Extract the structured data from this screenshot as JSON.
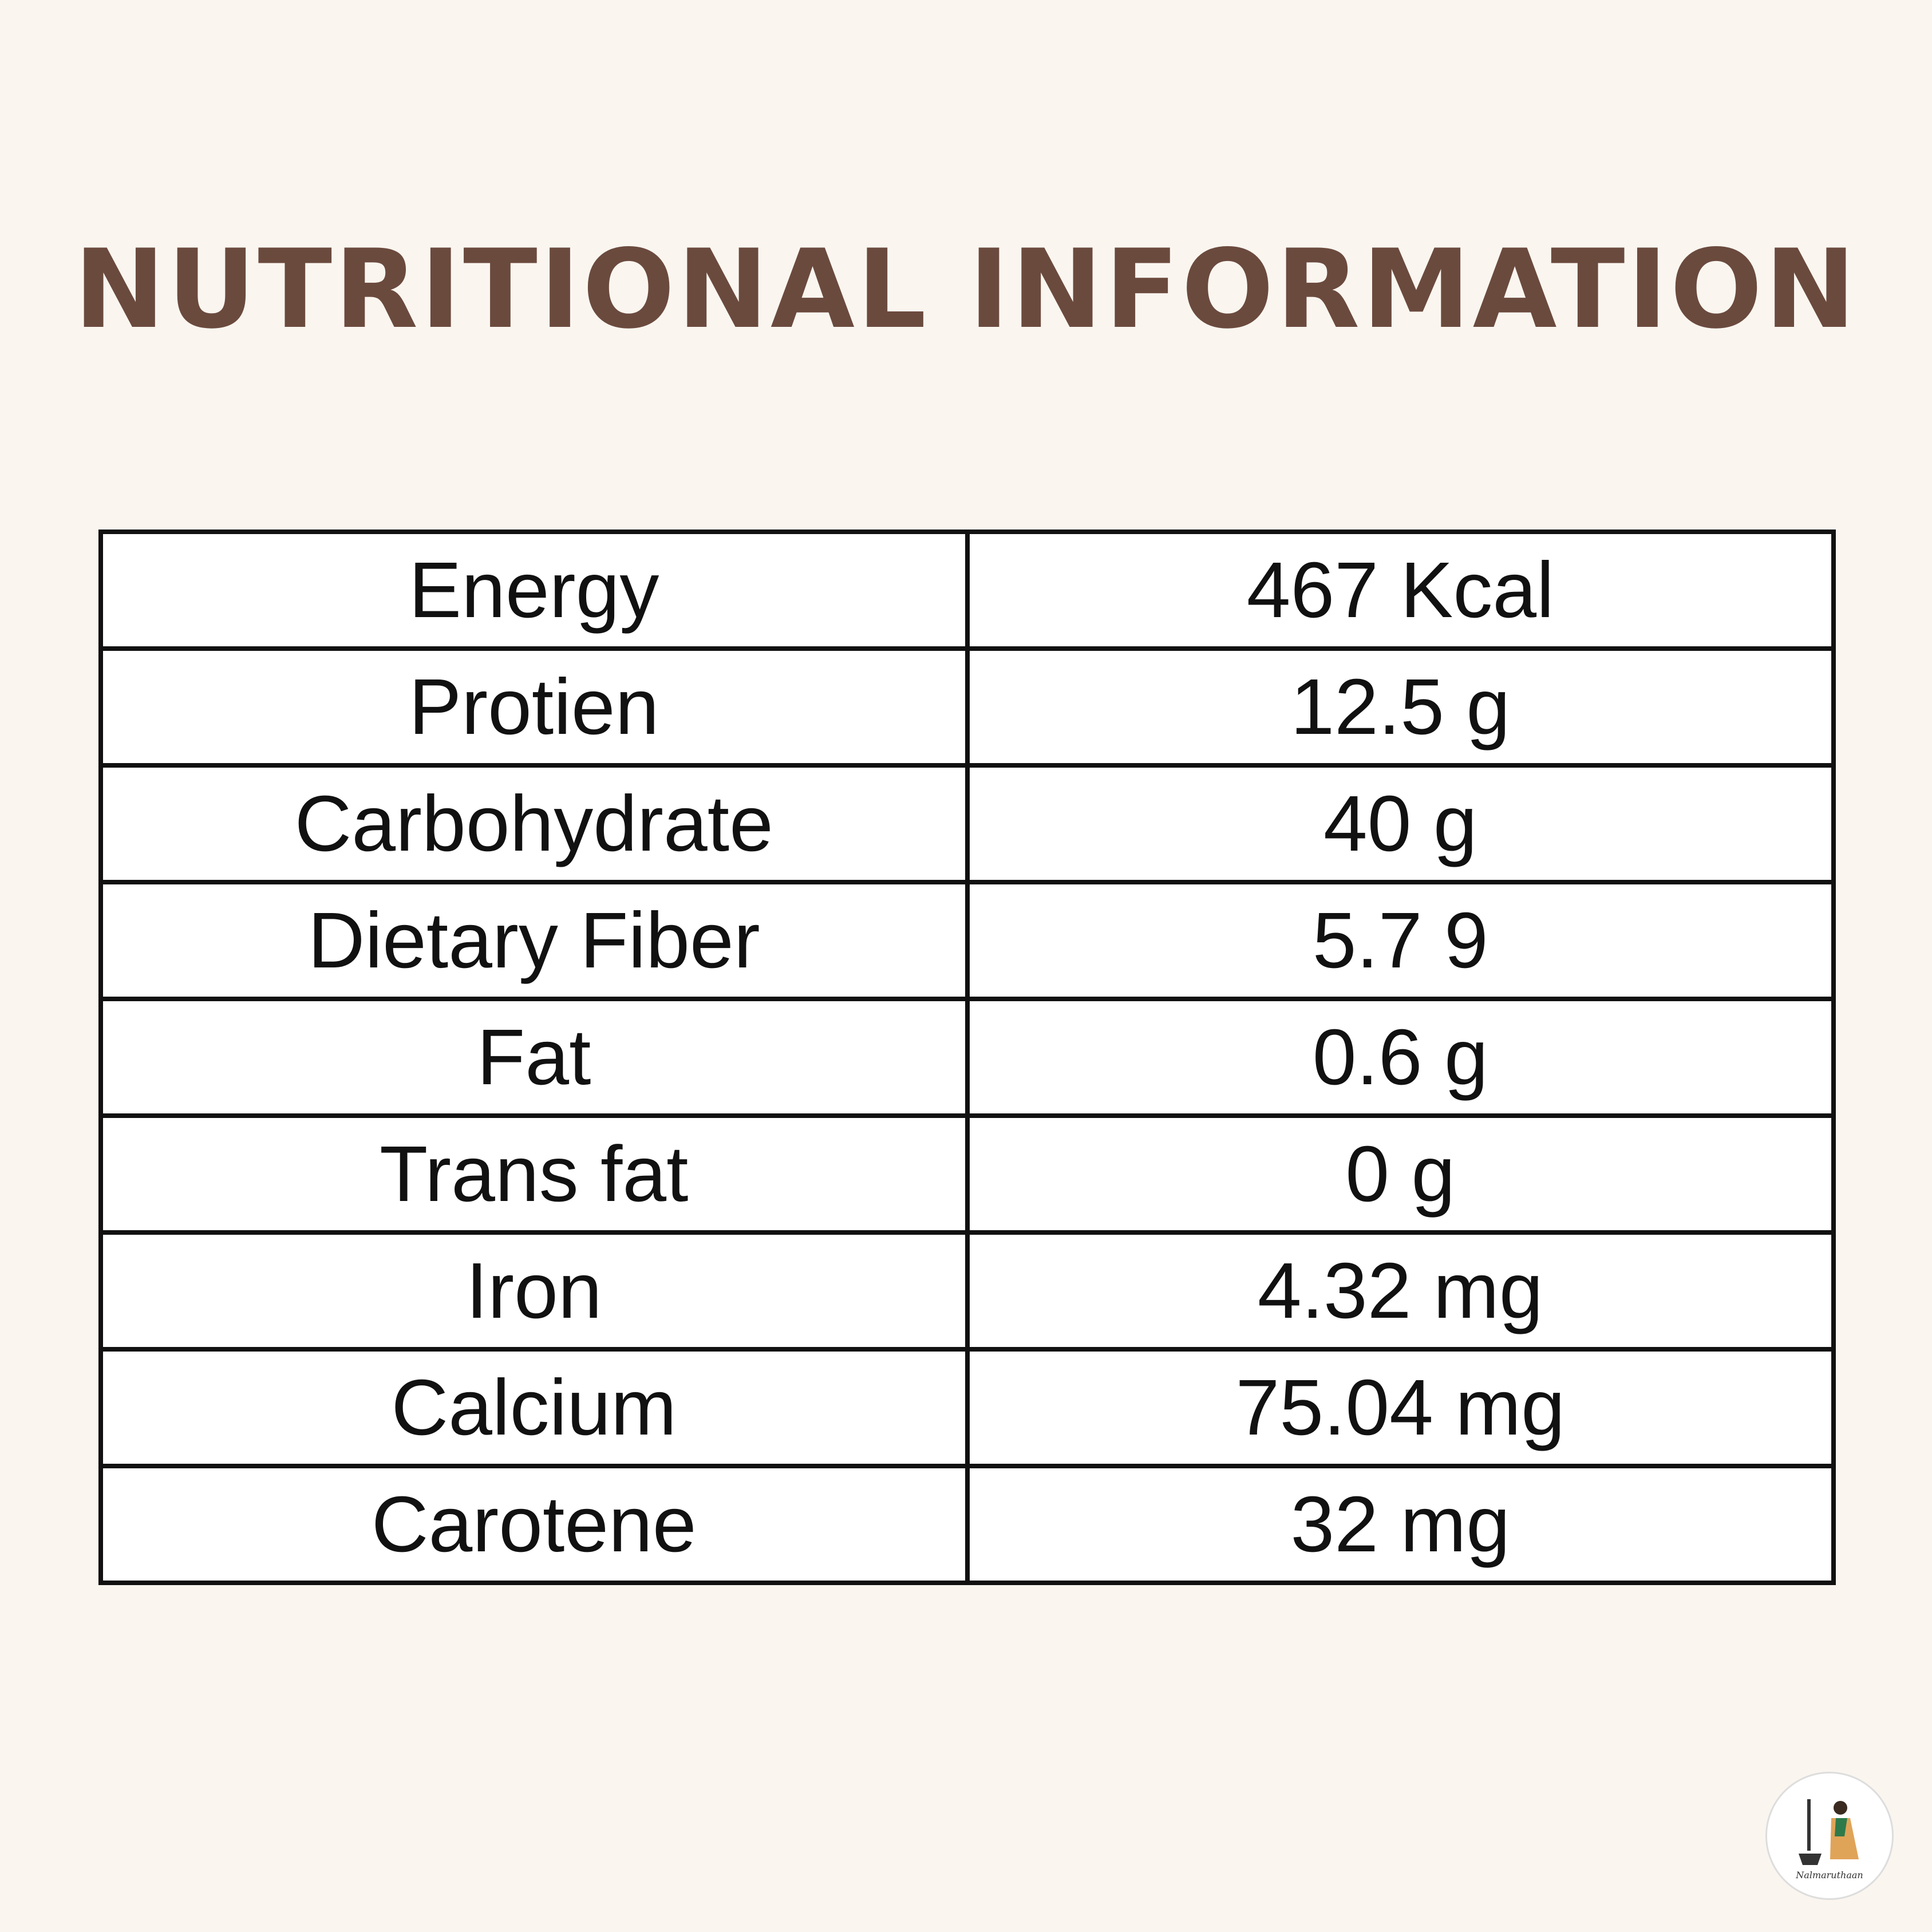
{
  "header": {
    "title": "NUTRITIONAL INFORMATION"
  },
  "table": {
    "rows": [
      [
        "Energy",
        "467 Kcal"
      ],
      [
        "Protien",
        "12.5 g"
      ],
      [
        "Carbohydrate",
        "40 g"
      ],
      [
        "Dietary Fiber",
        "5.7 9"
      ],
      [
        "Fat",
        "0.6 g"
      ],
      [
        "Trans fat",
        "0 g"
      ],
      [
        "Iron",
        "4.32 mg"
      ],
      [
        "Calcium",
        "75.04 mg"
      ],
      [
        "Carotene",
        "32 mg"
      ]
    ]
  },
  "logo": {
    "text": "Nalmaruthaan"
  }
}
